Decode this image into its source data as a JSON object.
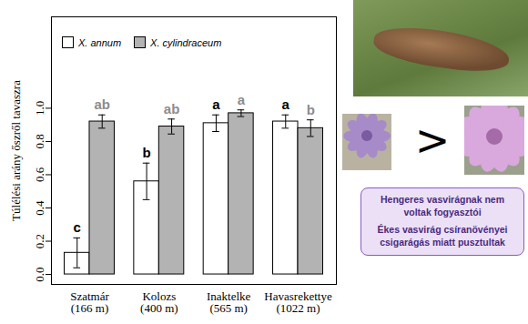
{
  "chart_data": {
    "type": "bar",
    "ylabel": "Túlélési arány őszről tavaszra",
    "categories": [
      "Szatmár\n(166 m)",
      "Kolozs\n(400 m)",
      "Inaktelke\n(565 m)",
      "Havasrekettye\n(1022 m)"
    ],
    "series": [
      {
        "name": "X. annum",
        "color": "#ffffff",
        "values": [
          0.13,
          0.56,
          0.91,
          0.92
        ],
        "errors": [
          0.09,
          0.11,
          0.05,
          0.04
        ],
        "letters": [
          "c",
          "b",
          "a",
          "a"
        ]
      },
      {
        "name": "X. cylindraceum",
        "color": "#b3b3b3",
        "values": [
          0.92,
          0.89,
          0.97,
          0.88
        ],
        "errors": [
          0.04,
          0.045,
          0.02,
          0.05
        ],
        "letters": [
          "ab",
          "ab",
          "a",
          "b"
        ]
      }
    ],
    "ylim": [
      -0.06,
      1.55
    ],
    "yticks": [
      {
        "value": 0,
        "label": "0.0"
      },
      {
        "value": 0.2,
        "label": "0.2"
      },
      {
        "value": 0.4,
        "label": "0.4"
      },
      {
        "value": 0.6,
        "label": "0.6"
      },
      {
        "value": 0.8,
        "label": "0.8"
      },
      {
        "value": 1,
        "label": "1.0"
      }
    ],
    "legend": "top-left",
    "grid": false,
    "side_panel": {
      "symbol": ">",
      "notes": [
        "Hengeres vasvirágnak nem voltak fogyasztói",
        "Ékes vasvirág csíranövényei csigarágás miatt pusztultak"
      ]
    }
  }
}
